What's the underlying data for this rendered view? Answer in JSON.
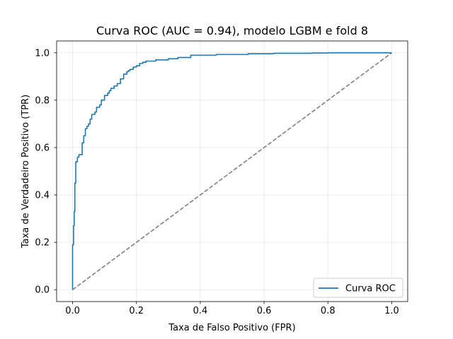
{
  "chart_data": {
    "type": "line",
    "title": "Curva ROC (AUC = 0.94), modelo LGBM e fold 8",
    "xlabel": "Taxa de Falso Positivo (FPR)",
    "ylabel": "Taxa de Verdadeiro Positivo (TPR)",
    "xlim": [
      -0.05,
      1.05
    ],
    "ylim": [
      -0.05,
      1.05
    ],
    "xticks": [
      0.0,
      0.2,
      0.4,
      0.6,
      0.8,
      1.0
    ],
    "yticks": [
      0.0,
      0.2,
      0.4,
      0.6,
      0.8,
      1.0
    ],
    "xtick_labels": [
      "0.0",
      "0.2",
      "0.4",
      "0.6",
      "0.8",
      "1.0"
    ],
    "ytick_labels": [
      "0.0",
      "0.2",
      "0.4",
      "0.6",
      "0.8",
      "1.0"
    ],
    "grid": true,
    "legend_position": "lower right",
    "series": [
      {
        "name": "Curva ROC",
        "color": "#1f77b4",
        "style": "solid",
        "x": [
          0.0,
          0.0,
          0.003,
          0.003,
          0.005,
          0.005,
          0.007,
          0.007,
          0.01,
          0.01,
          0.015,
          0.015,
          0.02,
          0.02,
          0.03,
          0.03,
          0.035,
          0.035,
          0.04,
          0.04,
          0.045,
          0.045,
          0.05,
          0.05,
          0.055,
          0.055,
          0.06,
          0.06,
          0.07,
          0.07,
          0.075,
          0.075,
          0.085,
          0.085,
          0.09,
          0.09,
          0.1,
          0.1,
          0.11,
          0.11,
          0.115,
          0.115,
          0.12,
          0.12,
          0.13,
          0.13,
          0.14,
          0.14,
          0.15,
          0.15,
          0.16,
          0.16,
          0.17,
          0.17,
          0.175,
          0.175,
          0.18,
          0.18,
          0.19,
          0.19,
          0.2,
          0.2,
          0.21,
          0.21,
          0.22,
          0.22,
          0.23,
          0.23,
          0.26,
          0.26,
          0.3,
          0.3,
          0.33,
          0.33,
          0.37,
          0.37,
          0.45,
          0.45,
          0.55,
          0.55,
          0.63,
          0.63,
          0.75,
          0.75,
          0.8,
          0.8,
          0.9,
          0.9,
          1.0
        ],
        "y": [
          0.0,
          0.19,
          0.19,
          0.27,
          0.27,
          0.33,
          0.33,
          0.45,
          0.45,
          0.54,
          0.54,
          0.56,
          0.56,
          0.57,
          0.57,
          0.62,
          0.62,
          0.65,
          0.65,
          0.68,
          0.68,
          0.69,
          0.69,
          0.7,
          0.7,
          0.72,
          0.72,
          0.74,
          0.74,
          0.75,
          0.75,
          0.77,
          0.77,
          0.78,
          0.78,
          0.8,
          0.8,
          0.82,
          0.82,
          0.83,
          0.83,
          0.84,
          0.84,
          0.85,
          0.85,
          0.86,
          0.86,
          0.87,
          0.87,
          0.89,
          0.89,
          0.91,
          0.91,
          0.92,
          0.92,
          0.925,
          0.925,
          0.93,
          0.93,
          0.94,
          0.94,
          0.945,
          0.945,
          0.955,
          0.955,
          0.96,
          0.96,
          0.965,
          0.965,
          0.97,
          0.97,
          0.975,
          0.975,
          0.98,
          0.98,
          0.99,
          0.99,
          0.993,
          0.993,
          0.996,
          0.996,
          0.998,
          0.998,
          0.999,
          0.999,
          1.0,
          1.0,
          1.0,
          1.0
        ]
      },
      {
        "color": "#808080",
        "style": "dashed",
        "x": [
          0.0,
          1.0
        ],
        "y": [
          0.0,
          1.0
        ]
      }
    ]
  }
}
